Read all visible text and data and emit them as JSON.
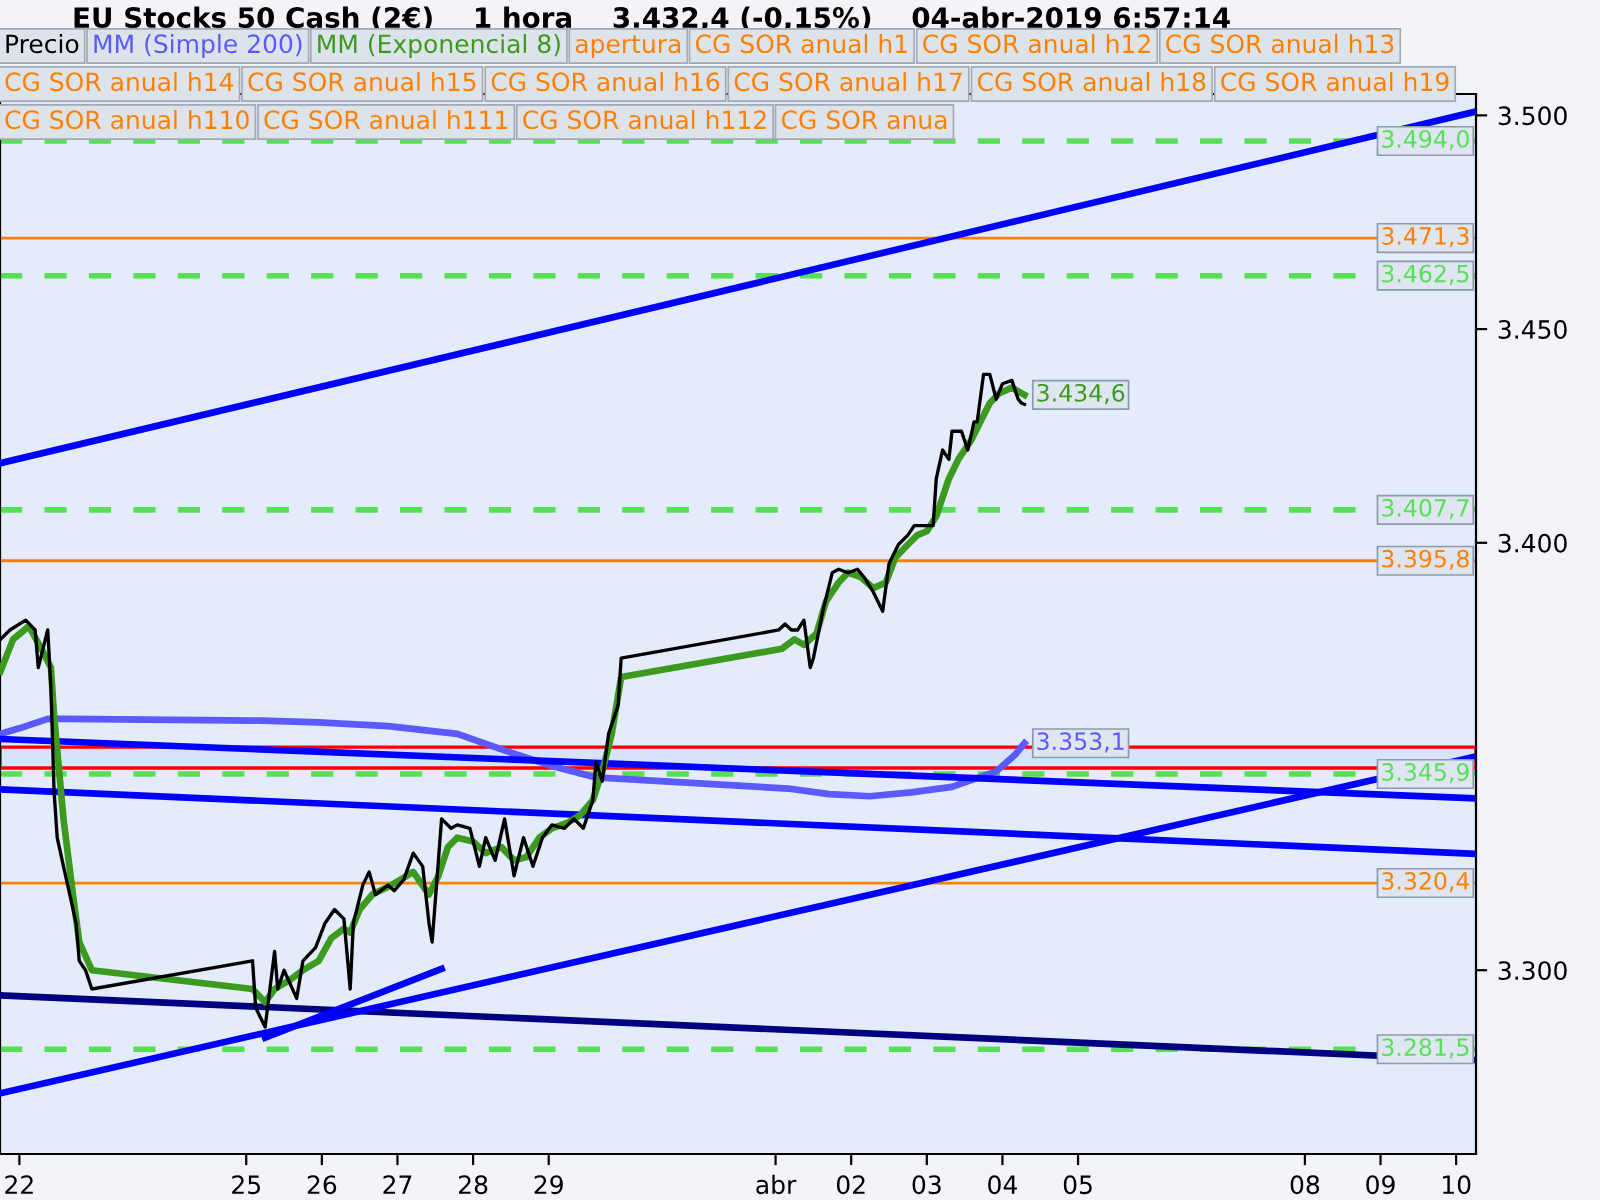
{
  "chart_data": {
    "type": "line",
    "title": "EU Stocks 50 Cash (2€)    1 hora    3.432,4 (-0,15%)    04-abr-2019 6:57:14",
    "annotations": [
      "apertura",
      "CG SOR anual h1",
      "CG SOR anual h12",
      "CG SOR anual h13",
      "CG SOR anual h14",
      "CG SOR anual h15",
      "CG SOR anual h16",
      "CG SOR anual h17",
      "CG SOR anual h18",
      "CG SOR anual h19",
      "CG SOR anual h110",
      "CG SOR anual h111",
      "CG SOR anual h112",
      "CG SOR anua"
    ],
    "xlim": [
      "2019-03-21T17:51",
      "2019-04-10T06:18"
    ],
    "xticks": [
      {
        "value": "2019-03-22",
        "label": "22"
      },
      {
        "value": "2019-03-25",
        "label": "25"
      },
      {
        "value": "2019-03-26",
        "label": "26"
      },
      {
        "value": "2019-03-27",
        "label": "27"
      },
      {
        "value": "2019-03-28",
        "label": "28"
      },
      {
        "value": "2019-03-29",
        "label": "29"
      },
      {
        "value": "2019-04-01",
        "label": "abr"
      },
      {
        "value": "2019-04-02",
        "label": "02"
      },
      {
        "value": "2019-04-03",
        "label": "03"
      },
      {
        "value": "2019-04-04",
        "label": "04"
      },
      {
        "value": "2019-04-05",
        "label": "05"
      },
      {
        "value": "2019-04-08",
        "label": "08"
      },
      {
        "value": "2019-04-09",
        "label": "09"
      },
      {
        "value": "2019-04-10",
        "label": "10"
      }
    ],
    "ylim": [
      3257,
      3505
    ],
    "yticks": [
      {
        "value": 3300,
        "label": "3.300"
      },
      {
        "value": 3400,
        "label": "3.400"
      },
      {
        "value": 3450,
        "label": "3.450"
      },
      {
        "value": 3500,
        "label": "3.500"
      }
    ],
    "series": [
      {
        "name": "Precio",
        "color": "#000000",
        "x": [
          "2019-03-21T18:00",
          "2019-03-21T21:00",
          "2019-03-22T02:00",
          "2019-03-22T05:00",
          "2019-03-22T06:00",
          "2019-03-22T09:00",
          "2019-03-22T10:00",
          "2019-03-22T11:00",
          "2019-03-22T12:00",
          "2019-03-22T14:00",
          "2019-03-22T16:00",
          "2019-03-22T18:00",
          "2019-03-22T19:00",
          "2019-03-22T21:00",
          "2019-03-22T23:00",
          "2019-03-25T02:00",
          "2019-03-25T03:00",
          "2019-03-25T06:00",
          "2019-03-25T09:00",
          "2019-03-25T10:00",
          "2019-03-25T12:00",
          "2019-03-25T16:00",
          "2019-03-25T18:00",
          "2019-03-25T22:00",
          "2019-03-26T01:00",
          "2019-03-26T04:00",
          "2019-03-26T07:00",
          "2019-03-26T09:00",
          "2019-03-26T10:00",
          "2019-03-26T13:00",
          "2019-03-26T15:00",
          "2019-03-26T17:00",
          "2019-03-26T21:00",
          "2019-03-26T23:00",
          "2019-03-27T02:00",
          "2019-03-27T05:00",
          "2019-03-27T08:00",
          "2019-03-27T10:00",
          "2019-03-27T11:00",
          "2019-03-27T14:00",
          "2019-03-27T17:00",
          "2019-03-27T19:00",
          "2019-03-27T23:00",
          "2019-03-28T02:00",
          "2019-03-28T04:00",
          "2019-03-28T07:00",
          "2019-03-28T10:00",
          "2019-03-28T13:00",
          "2019-03-28T16:00",
          "2019-03-28T19:00",
          "2019-03-28T22:00",
          "2019-03-29T01:00",
          "2019-03-29T05:00",
          "2019-03-29T08:00",
          "2019-03-29T11:00",
          "2019-03-29T14:00",
          "2019-03-29T15:00",
          "2019-03-29T17:00",
          "2019-03-29T19:00",
          "2019-03-29T22:00",
          "2019-03-29T23:00",
          "2019-04-01T01:00",
          "2019-04-01T03:00",
          "2019-04-01T05:00",
          "2019-04-01T07:00",
          "2019-04-01T09:00",
          "2019-04-01T11:00",
          "2019-04-01T12:00",
          "2019-04-01T15:00",
          "2019-04-01T18:00",
          "2019-04-01T20:00",
          "2019-04-01T23:00",
          "2019-04-02T02:00",
          "2019-04-02T04:00",
          "2019-04-02T07:00",
          "2019-04-02T10:00",
          "2019-04-02T12:00",
          "2019-04-02T15:00",
          "2019-04-02T18:00",
          "2019-04-02T20:00",
          "2019-04-02T23:00",
          "2019-04-03T02:00",
          "2019-04-03T03:00",
          "2019-04-03T05:00",
          "2019-04-03T07:00",
          "2019-04-03T08:00",
          "2019-04-03T11:00",
          "2019-04-03T13:00",
          "2019-04-03T15:00",
          "2019-04-03T16:00",
          "2019-04-03T18:00",
          "2019-04-03T20:00",
          "2019-04-03T22:00",
          "2019-04-04T00:00",
          "2019-04-04T03:00",
          "2019-04-04T05:00",
          "2019-04-04T06:00",
          "2019-04-04T07:00"
        ],
        "values": [
          3377.4,
          3379.6,
          3381.9,
          3379.6,
          3370.8,
          3379.6,
          3366.4,
          3342,
          3331,
          3324.3,
          3317.7,
          3311,
          3302.2,
          3300,
          3295.6,
          3302.2,
          3291.2,
          3286.7,
          3304.4,
          3295.6,
          3300,
          3293.4,
          3302.2,
          3305.3,
          3311,
          3314.2,
          3312,
          3295.6,
          3311,
          3319.9,
          3323,
          3317.7,
          3319.9,
          3318.6,
          3321.2,
          3327.4,
          3324.3,
          3311,
          3306.6,
          3335.4,
          3333.2,
          3334,
          3333.2,
          3324.3,
          3331,
          3325.7,
          3335.4,
          3322.1,
          3331,
          3324.3,
          3331,
          3334,
          3333.2,
          3335.4,
          3333.2,
          3339.8,
          3348.7,
          3344.2,
          3355.3,
          3361.9,
          3373,
          3379.6,
          3381,
          3379.6,
          3379.6,
          3381.9,
          3370.8,
          3373,
          3384,
          3393,
          3393.8,
          3393,
          3393.8,
          3392,
          3388.5,
          3384,
          3395.1,
          3399.6,
          3401.8,
          3404,
          3404,
          3404,
          3415,
          3421.7,
          3419.5,
          3426.1,
          3426.1,
          3421.7,
          3428.3,
          3428.3,
          3439.4,
          3439.4,
          3433.6,
          3437.2,
          3438,
          3433.6,
          3432.7,
          3432.4
        ]
      },
      {
        "name": "MM (Simple 200)",
        "color": "#5a5aff",
        "x": [
          "2019-03-21T18:00",
          "2019-03-22T00:00",
          "2019-03-22T09:00",
          "2019-03-22T14:00",
          "2019-03-25T05:00",
          "2019-03-25T23:00",
          "2019-03-26T21:00",
          "2019-03-27T19:00",
          "2019-03-28T12:00",
          "2019-03-29T01:00",
          "2019-03-29T15:00",
          "2019-04-01T04:00",
          "2019-04-01T17:00",
          "2019-04-02T06:00",
          "2019-04-02T19:00",
          "2019-04-03T08:00",
          "2019-04-03T22:00",
          "2019-04-04T04:00",
          "2019-04-04T07:00"
        ],
        "values": [
          3355.3,
          3356.6,
          3358.8,
          3358.8,
          3358.4,
          3358,
          3357.1,
          3355.3,
          3350.9,
          3347.8,
          3345.1,
          3342.5,
          3341.2,
          3340.7,
          3341.6,
          3342.9,
          3346.5,
          3350.4,
          3353.1
        ],
        "value_labels": [
          null,
          null,
          null,
          null,
          null,
          null,
          null,
          null,
          null,
          null,
          null,
          null,
          null,
          null,
          null,
          null,
          null,
          null,
          "3.353,1"
        ]
      },
      {
        "name": "MM (Exponencial 8)",
        "color": "#3c9a1e",
        "x": [
          "2019-03-21T18:00",
          "2019-03-21T22:00",
          "2019-03-22T03:00",
          "2019-03-22T07:00",
          "2019-03-22T10:00",
          "2019-03-22T11:00",
          "2019-03-22T14:00",
          "2019-03-22T17:00",
          "2019-03-22T19:00",
          "2019-03-22T23:00",
          "2019-03-25T02:00",
          "2019-03-25T06:00",
          "2019-03-25T09:00",
          "2019-03-25T14:00",
          "2019-03-25T18:00",
          "2019-03-25T23:00",
          "2019-03-26T03:00",
          "2019-03-26T07:00",
          "2019-03-26T09:00",
          "2019-03-26T12:00",
          "2019-03-26T16:00",
          "2019-03-26T21:00",
          "2019-03-27T01:00",
          "2019-03-27T05:00",
          "2019-03-27T10:00",
          "2019-03-27T13:00",
          "2019-03-27T16:00",
          "2019-03-27T19:00",
          "2019-03-28T00:00",
          "2019-03-28T04:00",
          "2019-03-28T09:00",
          "2019-03-28T13:00",
          "2019-03-28T17:00",
          "2019-03-28T21:00",
          "2019-03-29T01:00",
          "2019-03-29T06:00",
          "2019-03-29T10:00",
          "2019-03-29T14:00",
          "2019-03-29T17:00",
          "2019-03-29T20:00",
          "2019-03-29T23:00",
          "2019-04-01T02:00",
          "2019-04-01T06:00",
          "2019-04-01T09:00",
          "2019-04-01T13:00",
          "2019-04-01T16:00",
          "2019-04-01T20:00",
          "2019-04-01T23:00",
          "2019-04-02T03:00",
          "2019-04-02T07:00",
          "2019-04-02T11:00",
          "2019-04-02T14:00",
          "2019-04-02T18:00",
          "2019-04-02T21:00",
          "2019-04-03T00:00",
          "2019-04-03T03:00",
          "2019-04-03T07:00",
          "2019-04-03T10:00",
          "2019-04-03T14:00",
          "2019-04-03T17:00",
          "2019-04-03T20:00",
          "2019-04-03T23:00",
          "2019-04-04T03:00",
          "2019-04-04T06:00",
          "2019-04-04T07:00"
        ],
        "values": [
          3369.9,
          3377.4,
          3380.5,
          3375.2,
          3370.8,
          3359.7,
          3335.4,
          3317.7,
          3306.6,
          3300,
          3295.6,
          3292.5,
          3295.6,
          3297.8,
          3300,
          3302.2,
          3307.5,
          3309.7,
          3308.8,
          3314.2,
          3317.7,
          3319.5,
          3321.2,
          3323,
          3317.7,
          3322.1,
          3328.8,
          3331,
          3330.1,
          3327.4,
          3328.8,
          3325.7,
          3326.5,
          3331,
          3333.2,
          3334.5,
          3336.3,
          3339.8,
          3346.5,
          3355.3,
          3368.6,
          3375.2,
          3377.4,
          3376.1,
          3378.8,
          3386.3,
          3390.7,
          3393,
          3392,
          3389.4,
          3390.7,
          3396.5,
          3399.6,
          3401.8,
          3402.7,
          3406.2,
          3415,
          3419.5,
          3423.9,
          3428.3,
          3432.7,
          3435,
          3436.3,
          3435,
          3434.6
        ],
        "value_labels": [
          null,
          null,
          null,
          null,
          null,
          null,
          null,
          null,
          null,
          null,
          null,
          null,
          null,
          null,
          null,
          null,
          null,
          null,
          null,
          null,
          null,
          null,
          null,
          null,
          null,
          null,
          null,
          null,
          null,
          null,
          null,
          null,
          null,
          null,
          null,
          null,
          null,
          null,
          null,
          null,
          null,
          null,
          null,
          null,
          null,
          null,
          null,
          null,
          null,
          null,
          null,
          null,
          null,
          null,
          null,
          null,
          null,
          null,
          null,
          null,
          null,
          null,
          null,
          null,
          "3.434,6"
        ]
      },
      {
        "color": "#0000ff",
        "x": [
          "2019-03-21T17:51",
          "2019-04-10T06:18"
        ],
        "values": [
          3418.6,
          3500.9
        ]
      },
      {
        "color": "#0000ff",
        "x": [
          "2019-03-21T17:51",
          "2019-04-10T06:18"
        ],
        "values": [
          3354.1,
          3340.2
        ]
      },
      {
        "color": "#0000ff",
        "x": [
          "2019-03-21T17:51",
          "2019-04-10T06:18"
        ],
        "values": [
          3342.3,
          3327.2
        ]
      },
      {
        "color": "#000080",
        "x": [
          "2019-03-21T17:51",
          "2019-04-10T06:18"
        ],
        "values": [
          3294.1,
          3279.0
        ]
      },
      {
        "color": "#0000ff",
        "x": [
          "2019-03-25T06:00",
          "2019-03-27T14:00"
        ],
        "values": [
          3284.2,
          3300.3
        ]
      },
      {
        "color": "#0000ff",
        "x": [
          "2019-03-21T17:51",
          "2019-04-10T06:18"
        ],
        "values": [
          3271.2,
          3350.0
        ]
      }
    ],
    "ref_lines": [
      {
        "axis": "y",
        "value": 3494.0,
        "label": "3.494,0",
        "color": "#55e055",
        "line_style": "dashed"
      },
      {
        "axis": "y",
        "value": 3471.3,
        "label": "3.471,3",
        "color": "#ff8000",
        "line_style": "solid"
      },
      {
        "axis": "y",
        "value": 3462.5,
        "label": "3.462,5",
        "color": "#55e055",
        "line_style": "dashed"
      },
      {
        "axis": "y",
        "value": 3407.7,
        "label": "3.407,7",
        "color": "#55e055",
        "line_style": "dashed"
      },
      {
        "axis": "y",
        "value": 3395.8,
        "label": "3.395,8",
        "color": "#ff8000",
        "line_style": "solid"
      },
      {
        "axis": "y",
        "value": 3345.9,
        "label": "3.345,9",
        "color": "#55e055",
        "line_style": "dashed"
      },
      {
        "axis": "y",
        "value": 3320.4,
        "label": "3.320,4",
        "color": "#ff8000",
        "line_style": "solid"
      },
      {
        "axis": "y",
        "value": 3281.5,
        "label": "3.281,5",
        "color": "#55e055",
        "line_style": "dashed"
      }
    ],
    "bands": [
      {
        "axis": "y",
        "from": 3347.3,
        "to": 3352.2,
        "color": "#ff0000"
      }
    ]
  }
}
